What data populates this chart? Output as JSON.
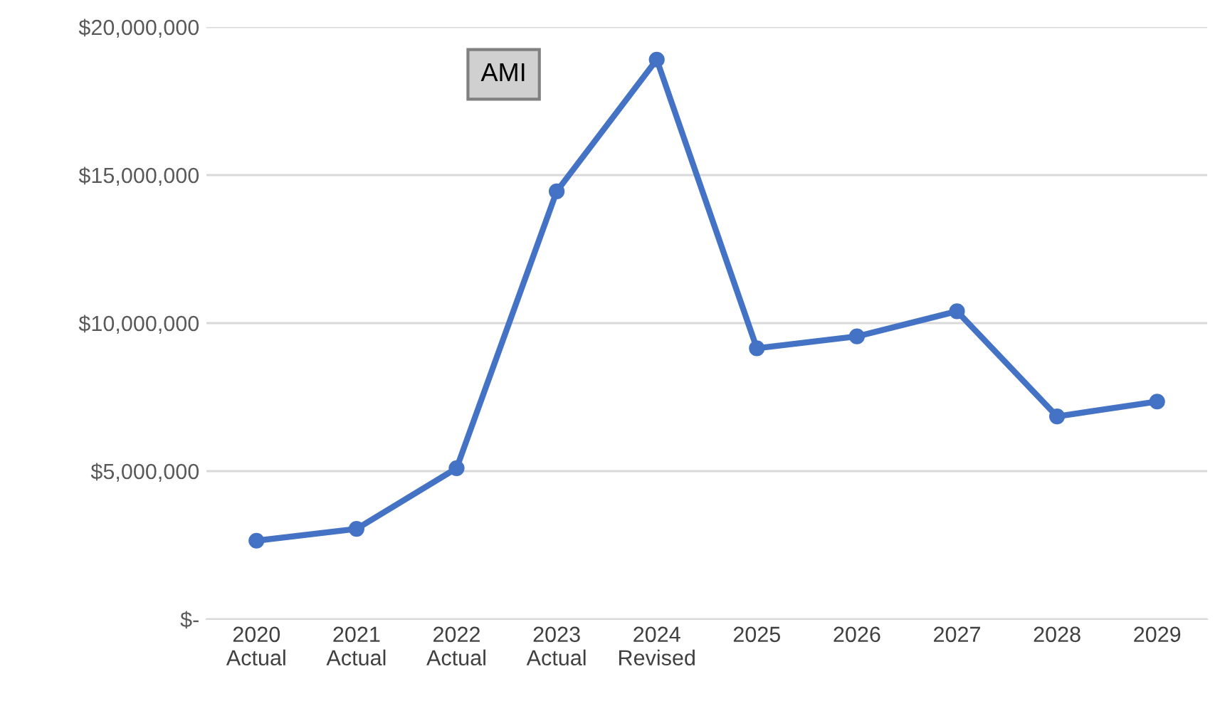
{
  "chart_data": {
    "type": "line",
    "categories": [
      "2020\nActual",
      "2021\nActual",
      "2022\nActual",
      "2023\nActual",
      "2024\nRevised",
      "2025",
      "2026",
      "2027",
      "2028",
      "2029"
    ],
    "series": [
      {
        "color": "#4472c4",
        "values": [
          2650000,
          3050000,
          5100000,
          14450000,
          18900000,
          9150000,
          9550000,
          10400000,
          6850000,
          7350000
        ]
      }
    ],
    "ylim": [
      0,
      20000000
    ],
    "yticks": [
      {
        "value": 0,
        "label": "$-"
      },
      {
        "value": 5000000,
        "label": "$5,000,000"
      },
      {
        "value": 10000000,
        "label": "$10,000,000"
      },
      {
        "value": 15000000,
        "label": "$15,000,000"
      },
      {
        "value": 20000000,
        "label": "$20,000,000"
      }
    ],
    "grid": "y",
    "marker": "circle",
    "line_style": "solid",
    "legend": false,
    "annotations": [
      "AMI"
    ]
  }
}
